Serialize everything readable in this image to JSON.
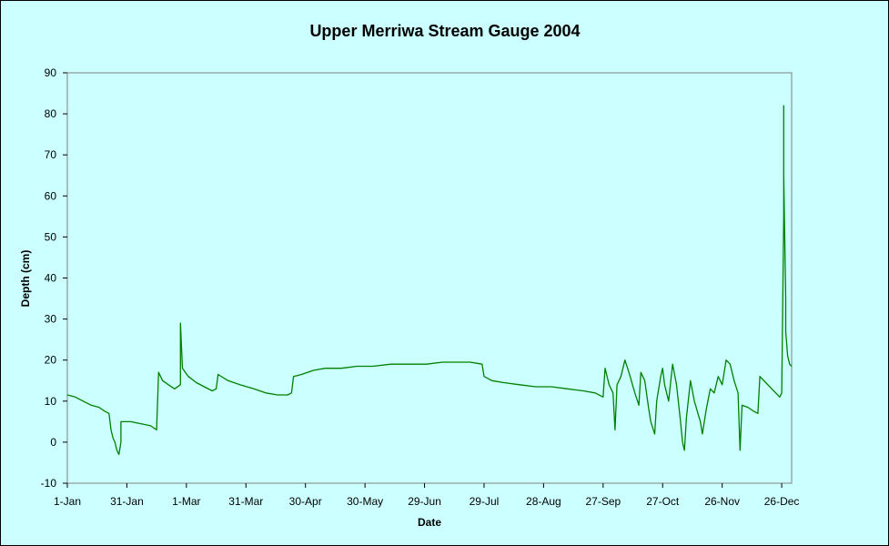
{
  "chart_data": {
    "type": "line",
    "title": "Upper Merriwa Stream Gauge 2004",
    "xlabel": "Date",
    "ylabel": "Depth (cm)",
    "ylim": [
      -10,
      90
    ],
    "yticks": [
      -10,
      0,
      10,
      20,
      30,
      40,
      50,
      60,
      70,
      80,
      90
    ],
    "xlim": [
      "2004-01-01",
      "2004-12-31"
    ],
    "xticks": [
      {
        "date": "2004-01-01",
        "label": "1-Jan"
      },
      {
        "date": "2004-01-31",
        "label": "31-Jan"
      },
      {
        "date": "2004-03-01",
        "label": "1-Mar"
      },
      {
        "date": "2004-03-31",
        "label": "31-Mar"
      },
      {
        "date": "2004-04-30",
        "label": "30-Apr"
      },
      {
        "date": "2004-05-30",
        "label": "30-May"
      },
      {
        "date": "2004-06-29",
        "label": "29-Jun"
      },
      {
        "date": "2004-07-29",
        "label": "29-Jul"
      },
      {
        "date": "2004-08-28",
        "label": "28-Aug"
      },
      {
        "date": "2004-09-27",
        "label": "27-Sep"
      },
      {
        "date": "2004-10-27",
        "label": "27-Oct"
      },
      {
        "date": "2004-11-26",
        "label": "26-Nov"
      },
      {
        "date": "2004-12-26",
        "label": "26-Dec"
      }
    ],
    "grid": false,
    "legend": "none",
    "colors": {
      "line": "#008000",
      "background": "#ccffff",
      "plot_border": "#808080"
    },
    "series": [
      {
        "points": [
          [
            "2004-01-01",
            11.5
          ],
          [
            "2004-01-05",
            11
          ],
          [
            "2004-01-09",
            10
          ],
          [
            "2004-01-13",
            9
          ],
          [
            "2004-01-17",
            8.5
          ],
          [
            "2004-01-20",
            7.5
          ],
          [
            "2004-01-22",
            7
          ],
          [
            "2004-01-23",
            3
          ],
          [
            "2004-01-24",
            1
          ],
          [
            "2004-01-25",
            0
          ],
          [
            "2004-01-26",
            -2
          ],
          [
            "2004-01-27",
            -3
          ],
          [
            "2004-01-28",
            0
          ],
          [
            "2004-01-28",
            5
          ],
          [
            "2004-02-02",
            5
          ],
          [
            "2004-02-07",
            4.5
          ],
          [
            "2004-02-12",
            4
          ],
          [
            "2004-02-15",
            3
          ],
          [
            "2004-02-16",
            17
          ],
          [
            "2004-02-18",
            15
          ],
          [
            "2004-02-21",
            14
          ],
          [
            "2004-02-24",
            13
          ],
          [
            "2004-02-27",
            14
          ],
          [
            "2004-02-27",
            29
          ],
          [
            "2004-02-28",
            18
          ],
          [
            "2004-03-02",
            16
          ],
          [
            "2004-03-06",
            14.5
          ],
          [
            "2004-03-10",
            13.5
          ],
          [
            "2004-03-14",
            12.5
          ],
          [
            "2004-03-16",
            13
          ],
          [
            "2004-03-17",
            16.5
          ],
          [
            "2004-03-22",
            15
          ],
          [
            "2004-03-28",
            14
          ],
          [
            "2004-04-04",
            13
          ],
          [
            "2004-04-10",
            12
          ],
          [
            "2004-04-16",
            11.5
          ],
          [
            "2004-04-21",
            11.5
          ],
          [
            "2004-04-23",
            12
          ],
          [
            "2004-04-24",
            16
          ],
          [
            "2004-04-28",
            16.5
          ],
          [
            "2004-05-04",
            17.5
          ],
          [
            "2004-05-10",
            18
          ],
          [
            "2004-05-18",
            18
          ],
          [
            "2004-05-26",
            18.5
          ],
          [
            "2004-06-03",
            18.5
          ],
          [
            "2004-06-12",
            19
          ],
          [
            "2004-06-21",
            19
          ],
          [
            "2004-06-30",
            19
          ],
          [
            "2004-07-08",
            19.5
          ],
          [
            "2004-07-16",
            19.5
          ],
          [
            "2004-07-22",
            19.5
          ],
          [
            "2004-07-28",
            19
          ],
          [
            "2004-07-29",
            16
          ],
          [
            "2004-08-02",
            15
          ],
          [
            "2004-08-08",
            14.5
          ],
          [
            "2004-08-16",
            14
          ],
          [
            "2004-08-24",
            13.5
          ],
          [
            "2004-09-01",
            13.5
          ],
          [
            "2004-09-09",
            13
          ],
          [
            "2004-09-17",
            12.5
          ],
          [
            "2004-09-23",
            12
          ],
          [
            "2004-09-27",
            11
          ],
          [
            "2004-09-28",
            18
          ],
          [
            "2004-09-30",
            14
          ],
          [
            "2004-10-02",
            12
          ],
          [
            "2004-10-03",
            3
          ],
          [
            "2004-10-04",
            14
          ],
          [
            "2004-10-06",
            16
          ],
          [
            "2004-10-08",
            20
          ],
          [
            "2004-10-10",
            17
          ],
          [
            "2004-10-13",
            12
          ],
          [
            "2004-10-15",
            9
          ],
          [
            "2004-10-16",
            17
          ],
          [
            "2004-10-18",
            15
          ],
          [
            "2004-10-20",
            8
          ],
          [
            "2004-10-21",
            5
          ],
          [
            "2004-10-23",
            2
          ],
          [
            "2004-10-24",
            10
          ],
          [
            "2004-10-26",
            16
          ],
          [
            "2004-10-27",
            18
          ],
          [
            "2004-10-28",
            14
          ],
          [
            "2004-10-30",
            10
          ],
          [
            "2004-11-01",
            19
          ],
          [
            "2004-11-03",
            14
          ],
          [
            "2004-11-05",
            5
          ],
          [
            "2004-11-06",
            0
          ],
          [
            "2004-11-07",
            -2
          ],
          [
            "2004-11-08",
            6
          ],
          [
            "2004-11-10",
            15
          ],
          [
            "2004-11-12",
            10
          ],
          [
            "2004-11-15",
            5
          ],
          [
            "2004-11-16",
            2
          ],
          [
            "2004-11-18",
            8
          ],
          [
            "2004-11-20",
            13
          ],
          [
            "2004-11-22",
            12
          ],
          [
            "2004-11-24",
            16
          ],
          [
            "2004-11-26",
            14
          ],
          [
            "2004-11-28",
            20
          ],
          [
            "2004-11-30",
            19
          ],
          [
            "2004-12-02",
            15
          ],
          [
            "2004-12-04",
            12
          ],
          [
            "2004-12-05",
            -2
          ],
          [
            "2004-12-06",
            9
          ],
          [
            "2004-12-09",
            8.5
          ],
          [
            "2004-12-12",
            7.5
          ],
          [
            "2004-12-14",
            7
          ],
          [
            "2004-12-15",
            16
          ],
          [
            "2004-12-18",
            14.5
          ],
          [
            "2004-12-21",
            13
          ],
          [
            "2004-12-23",
            12
          ],
          [
            "2004-12-25",
            11
          ],
          [
            "2004-12-26",
            12
          ],
          [
            "2004-12-27",
            55
          ],
          [
            "2004-12-27",
            82
          ],
          [
            "2004-12-27",
            65
          ],
          [
            "2004-12-28",
            35
          ],
          [
            "2004-12-28",
            27
          ],
          [
            "2004-12-29",
            21
          ],
          [
            "2004-12-30",
            19
          ],
          [
            "2004-12-31",
            18.5
          ]
        ]
      }
    ]
  }
}
